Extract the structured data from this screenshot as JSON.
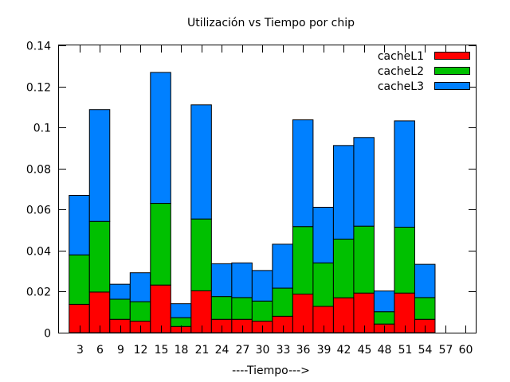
{
  "chart_data": {
    "type": "bar",
    "stacked": true,
    "title": "Utilización vs Tiempo por chip",
    "xlabel": "----Tiempo--->",
    "ylabel": "",
    "ylim": [
      0,
      0.14
    ],
    "yticks": [
      "0",
      "0.02",
      "0.04",
      "0.06",
      "0.08",
      "0.1",
      "0.12",
      "0.14"
    ],
    "categories": [
      "3",
      "6",
      "9",
      "12",
      "15",
      "18",
      "21",
      "24",
      "27",
      "30",
      "33",
      "36",
      "39",
      "42",
      "45",
      "48",
      "51",
      "54",
      "57",
      "60"
    ],
    "legend_position": "top-right",
    "grid": false,
    "series": [
      {
        "name": "cacheL1",
        "color": "#ff0000",
        "values": [
          0.0138,
          0.0198,
          0.0065,
          0.0056,
          0.0232,
          0.003,
          0.0204,
          0.0065,
          0.0065,
          0.0056,
          0.008,
          0.0188,
          0.0128,
          0.017,
          0.0193,
          0.0042,
          0.0193,
          0.0065,
          0,
          0
        ]
      },
      {
        "name": "cacheL2",
        "color": "#00c000",
        "values": [
          0.0241,
          0.0344,
          0.0098,
          0.0095,
          0.0398,
          0.0043,
          0.035,
          0.0111,
          0.0106,
          0.0098,
          0.0137,
          0.0329,
          0.0212,
          0.0286,
          0.0326,
          0.006,
          0.0321,
          0.0106,
          0,
          0
        ]
      },
      {
        "name": "cacheL3",
        "color": "#0080ff",
        "values": [
          0.029,
          0.0545,
          0.0073,
          0.0141,
          0.0638,
          0.0068,
          0.0556,
          0.016,
          0.0169,
          0.0149,
          0.0214,
          0.052,
          0.0271,
          0.0456,
          0.0432,
          0.0101,
          0.0518,
          0.0162,
          0,
          0
        ]
      }
    ]
  }
}
